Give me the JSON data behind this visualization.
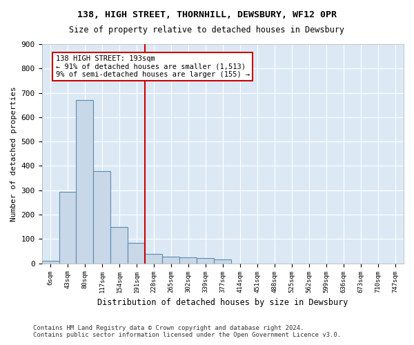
{
  "title": "138, HIGH STREET, THORNHILL, DEWSBURY, WF12 0PR",
  "subtitle": "Size of property relative to detached houses in Dewsbury",
  "xlabel": "Distribution of detached houses by size in Dewsbury",
  "ylabel": "Number of detached properties",
  "bar_color": "#c8d8e8",
  "bar_edge_color": "#5a8ab0",
  "background_color": "#dce9f5",
  "grid_color": "#ffffff",
  "annotation_box_color": "#cc0000",
  "vline_color": "#cc0000",
  "annotation_text": "138 HIGH STREET: 193sqm\n← 91% of detached houses are smaller (1,513)\n9% of semi-detached houses are larger (155) →",
  "bins": [
    "6sqm",
    "43sqm",
    "80sqm",
    "117sqm",
    "154sqm",
    "191sqm",
    "228sqm",
    "265sqm",
    "302sqm",
    "339sqm",
    "377sqm",
    "414sqm",
    "451sqm",
    "488sqm",
    "525sqm",
    "562sqm",
    "599sqm",
    "636sqm",
    "673sqm",
    "710sqm",
    "747sqm"
  ],
  "values": [
    10,
    295,
    670,
    380,
    150,
    85,
    40,
    28,
    25,
    22,
    15,
    0,
    0,
    0,
    0,
    0,
    0,
    0,
    0,
    0,
    0
  ],
  "ylim": [
    0,
    900
  ],
  "yticks": [
    0,
    100,
    200,
    300,
    400,
    500,
    600,
    700,
    800,
    900
  ],
  "vline_x": 5.5,
  "footnote": "Contains HM Land Registry data © Crown copyright and database right 2024.\nContains public sector information licensed under the Open Government Licence v3.0.",
  "figsize": [
    6.0,
    5.0
  ],
  "dpi": 100
}
